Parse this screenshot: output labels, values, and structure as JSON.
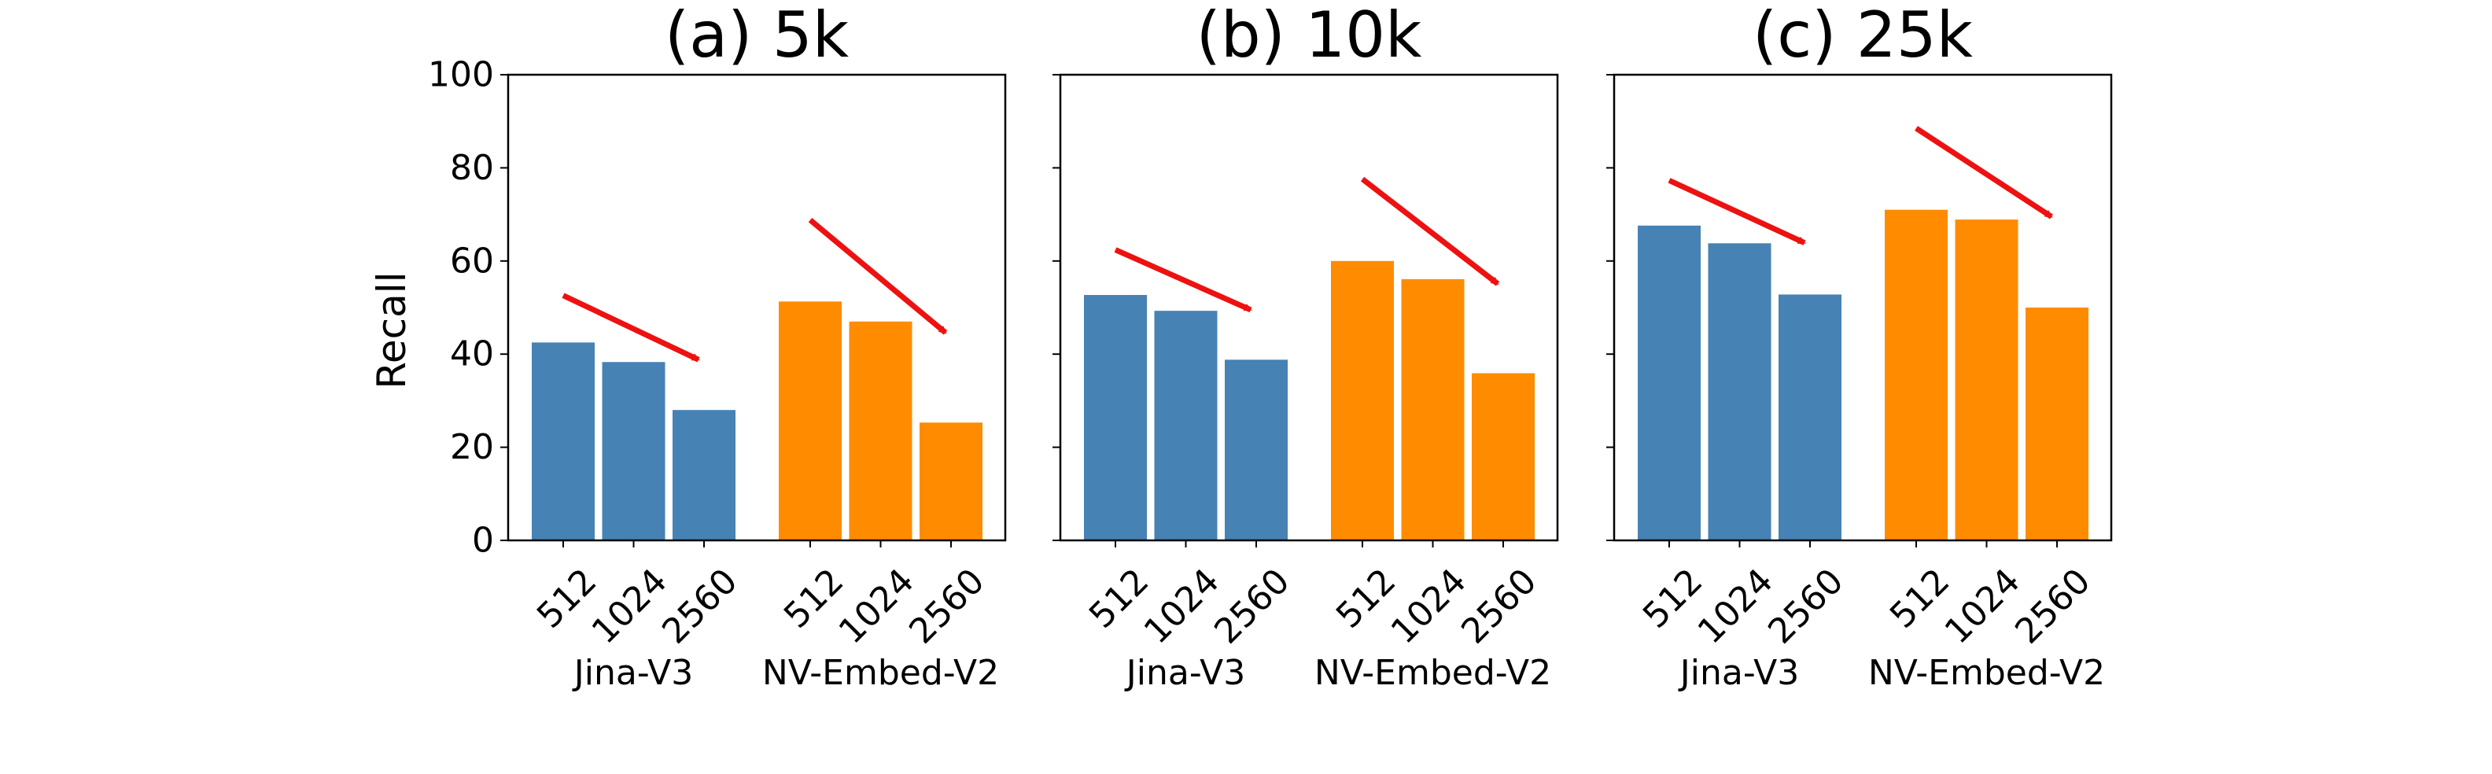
{
  "figure": {
    "ylabel": "Recall",
    "group_labels": [
      "Jina-V3",
      "NV-Embed-V2"
    ],
    "colors": {
      "Jina-V3": "#4682b4",
      "NV-Embed-V2": "#ff8c00",
      "trend_arrow": "#ee1111"
    }
  },
  "chart_data": [
    {
      "type": "bar",
      "title": "(a) 5k",
      "ylabel": "Recall",
      "ylim": [
        0,
        100
      ],
      "yticks": [
        0,
        20,
        40,
        60,
        80,
        100
      ],
      "categories": [
        "512",
        "1024",
        "2560"
      ],
      "series": [
        {
          "name": "Jina-V3",
          "values": [
            42.5,
            38.3,
            28.0
          ]
        },
        {
          "name": "NV-Embed-V2",
          "values": [
            51.3,
            47.0,
            25.3
          ]
        }
      ],
      "annotations": [
        {
          "type": "arrow",
          "series": "Jina-V3",
          "from": 52.6,
          "to": 38.8
        },
        {
          "type": "arrow",
          "series": "NV-Embed-V2",
          "from": 68.8,
          "to": 44.6
        }
      ]
    },
    {
      "type": "bar",
      "title": "(b) 10k",
      "ylabel": "",
      "ylim": [
        0,
        100
      ],
      "yticks": [
        0,
        20,
        40,
        60,
        80,
        100
      ],
      "categories": [
        "512",
        "1024",
        "2560"
      ],
      "series": [
        {
          "name": "Jina-V3",
          "values": [
            52.7,
            49.3,
            38.8
          ]
        },
        {
          "name": "NV-Embed-V2",
          "values": [
            60.0,
            56.1,
            35.9
          ]
        }
      ],
      "annotations": [
        {
          "type": "arrow",
          "series": "Jina-V3",
          "from": 62.4,
          "to": 49.5
        },
        {
          "type": "arrow",
          "series": "NV-Embed-V2",
          "from": 77.6,
          "to": 55.1
        }
      ]
    },
    {
      "type": "bar",
      "title": "(c) 25k",
      "ylabel": "",
      "ylim": [
        0,
        100
      ],
      "yticks": [
        0,
        20,
        40,
        60,
        80,
        100
      ],
      "categories": [
        "512",
        "1024",
        "2560"
      ],
      "series": [
        {
          "name": "Jina-V3",
          "values": [
            67.6,
            63.8,
            52.8
          ]
        },
        {
          "name": "NV-Embed-V2",
          "values": [
            71.0,
            68.9,
            50.0
          ]
        }
      ],
      "annotations": [
        {
          "type": "arrow",
          "series": "Jina-V3",
          "from": 77.3,
          "to": 63.9
        },
        {
          "type": "arrow",
          "series": "NV-Embed-V2",
          "from": 88.5,
          "to": 69.5
        }
      ]
    }
  ]
}
